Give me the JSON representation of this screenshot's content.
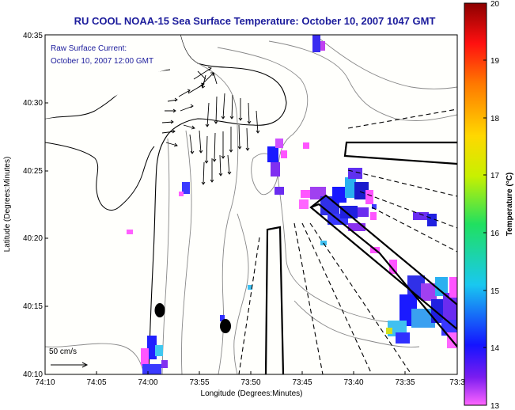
{
  "title": "RU COOL  NOAA-15  Sea Surface Temperature:  October 10, 2007 1047 GMT",
  "annotation": {
    "line1": "Raw Surface Current:",
    "line2": "October 10, 2007 12:00 GMT"
  },
  "scale": {
    "label": "50 cm/s"
  },
  "axes": {
    "xlabel": "Longitude (Degrees:Minutes)",
    "ylabel": "Latitude (Degrees:Minutes)",
    "xticks": [
      "74:10",
      "74:05",
      "74:00",
      "73:55",
      "73:50",
      "73:45",
      "73:40",
      "73:35",
      "73:3"
    ],
    "yticks": [
      "40:35",
      "40:30",
      "40:25",
      "40:20",
      "40:15",
      "40:10"
    ]
  },
  "colorbar": {
    "label": "Temperature (°C)",
    "ticks": [
      "20",
      "19",
      "18",
      "17",
      "16",
      "15",
      "14",
      "13"
    ],
    "min": 13,
    "max": 20
  }
}
